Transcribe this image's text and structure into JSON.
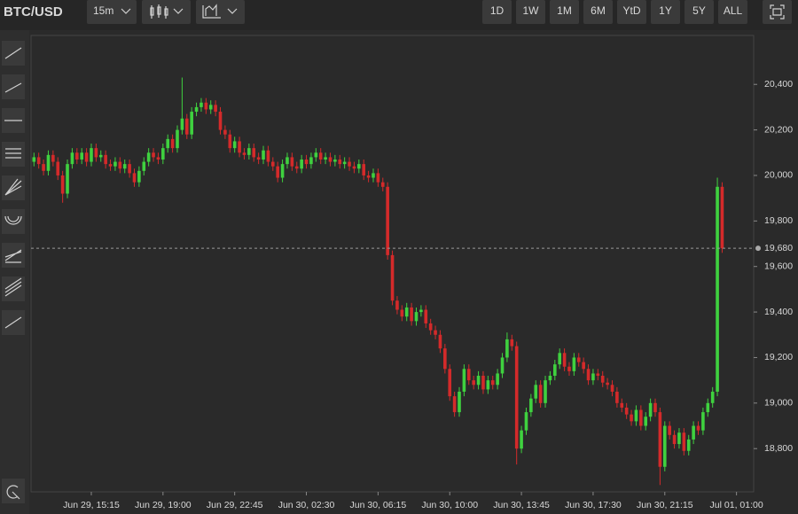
{
  "toolbar": {
    "symbol": "BTC/USD",
    "interval": "15m",
    "ranges": [
      "1D",
      "1W",
      "1M",
      "6M",
      "YtD",
      "1Y",
      "5Y",
      "ALL"
    ]
  },
  "chart_data": {
    "type": "candlestick",
    "categories": [
      null,
      null,
      null,
      null,
      null,
      null,
      null,
      null,
      null,
      null,
      null,
      null,
      "Jun 29, 15:15",
      null,
      null,
      null,
      null,
      null,
      null,
      null,
      null,
      null,
      null,
      null,
      null,
      null,
      null,
      "Jun 29, 19:00",
      null,
      null,
      null,
      null,
      null,
      null,
      null,
      null,
      null,
      null,
      null,
      null,
      null,
      null,
      "Jun 29, 22:45",
      null,
      null,
      null,
      null,
      null,
      null,
      null,
      null,
      null,
      null,
      null,
      null,
      null,
      null,
      "Jun 30, 02:30",
      null,
      null,
      null,
      null,
      null,
      null,
      null,
      null,
      null,
      null,
      null,
      null,
      null,
      null,
      "Jun 30, 06:15",
      null,
      null,
      null,
      null,
      null,
      null,
      null,
      null,
      null,
      null,
      null,
      null,
      null,
      null,
      "Jun 30, 10:00",
      null,
      null,
      null,
      null,
      null,
      null,
      null,
      null,
      null,
      null,
      null,
      null,
      null,
      null,
      "Jun 30, 13:45",
      null,
      null,
      null,
      null,
      null,
      null,
      null,
      null,
      null,
      null,
      null,
      null,
      null,
      null,
      "Jun 30, 17:30",
      null,
      null,
      null,
      null,
      null,
      null,
      null,
      null,
      null,
      null,
      null,
      null,
      null,
      null,
      "Jun 30, 21:15",
      null,
      null,
      null,
      null,
      null,
      null,
      null,
      null,
      null,
      null,
      null,
      null,
      null,
      null,
      "Jul 01, 01:00"
    ],
    "open": [
      20060,
      20080,
      20050,
      20020,
      20090,
      20060,
      20000,
      19920,
      20050,
      20100,
      20070,
      20100,
      20060,
      20120,
      20080,
      20090,
      20050,
      20040,
      20060,
      20030,
      20050,
      20010,
      19970,
      20020,
      20060,
      20100,
      20080,
      20070,
      20120,
      20160,
      20120,
      20200,
      20250,
      20180,
      20280,
      20300,
      20320,
      20290,
      20310,
      20280,
      20200,
      20180,
      20120,
      20150,
      20100,
      20090,
      20120,
      20080,
      20070,
      20110,
      20060,
      20040,
      19990,
      20050,
      20080,
      20040,
      20030,
      20070,
      20050,
      20080,
      20100,
      20070,
      20080,
      20060,
      20070,
      20050,
      20060,
      20040,
      20030,
      20050,
      20000,
      19990,
      20010,
      19970,
      19950,
      19650,
      19450,
      19410,
      19380,
      19420,
      19360,
      19400,
      19410,
      19350,
      19320,
      19300,
      19240,
      19150,
      19030,
      18960,
      19050,
      19150,
      19100,
      19080,
      19120,
      19060,
      19100,
      19080,
      19130,
      19200,
      19280,
      19250,
      18800,
      18880,
      18960,
      19020,
      19080,
      19000,
      19100,
      19120,
      19170,
      19220,
      19160,
      19140,
      19200,
      19180,
      19150,
      19100,
      19130,
      19120,
      19090,
      19080,
      19050,
      19000,
      18980,
      18950,
      18920,
      18970,
      18900,
      18940,
      19000,
      18960,
      18720,
      18900,
      18860,
      18820,
      18870,
      18790,
      18840,
      18900,
      18880,
      18960,
      19000,
      19050,
      19950,
      null,
      null,
      null
    ],
    "high": [
      20100,
      20100,
      20070,
      20110,
      20110,
      20080,
      20020,
      20070,
      20120,
      20120,
      20120,
      20120,
      20140,
      20140,
      20110,
      20110,
      20070,
      20080,
      20080,
      20070,
      20070,
      20030,
      20040,
      20080,
      20120,
      20120,
      20100,
      20140,
      20180,
      20180,
      20220,
      20430,
      20270,
      20300,
      20320,
      20340,
      20340,
      20330,
      20330,
      20300,
      20220,
      20200,
      20170,
      20170,
      20120,
      20140,
      20140,
      20100,
      20130,
      20130,
      20080,
      20060,
      20070,
      20100,
      20100,
      20060,
      20090,
      20090,
      20100,
      20120,
      20120,
      20100,
      20100,
      20090,
      20090,
      20080,
      20080,
      20060,
      20070,
      20070,
      20020,
      20030,
      20030,
      19990,
      19970,
      19670,
      19470,
      19430,
      19440,
      19440,
      19420,
      19430,
      19430,
      19370,
      19340,
      19320,
      19260,
      19170,
      19050,
      19070,
      19170,
      19170,
      19120,
      19140,
      19140,
      19120,
      19120,
      19150,
      19220,
      19310,
      19300,
      19270,
      18900,
      18980,
      19040,
      19100,
      19100,
      19120,
      19140,
      19190,
      19240,
      19240,
      19180,
      19220,
      19220,
      19200,
      19170,
      19150,
      19150,
      19140,
      19110,
      19100,
      19070,
      19020,
      19000,
      18970,
      18990,
      18990,
      18960,
      19020,
      19020,
      18980,
      18920,
      18920,
      18880,
      18890,
      18890,
      18860,
      18920,
      18920,
      18980,
      19020,
      19070,
      19990,
      19970,
      null,
      null,
      null
    ],
    "low": [
      20040,
      20030,
      20000,
      20000,
      20040,
      19980,
      19880,
      19900,
      20030,
      20050,
      20050,
      20040,
      20040,
      20060,
      20060,
      20030,
      20020,
      20020,
      20010,
      20010,
      19990,
      19950,
      19950,
      20000,
      20040,
      20060,
      20050,
      20050,
      20100,
      20100,
      20100,
      20180,
      20160,
      20160,
      20260,
      20280,
      20270,
      20270,
      20260,
      20180,
      20160,
      20100,
      20100,
      20080,
      20070,
      20070,
      20060,
      20050,
      20050,
      20040,
      20020,
      19970,
      19970,
      20030,
      20020,
      20010,
      20010,
      20030,
      20030,
      20060,
      20050,
      20050,
      20040,
      20040,
      20030,
      20030,
      20020,
      20010,
      20010,
      19980,
      19970,
      19970,
      19950,
      19930,
      19630,
      19430,
      19390,
      19360,
      19360,
      19340,
      19340,
      19380,
      19330,
      19300,
      19280,
      19220,
      19130,
      19010,
      18940,
      18940,
      19030,
      19080,
      19060,
      19060,
      19040,
      19040,
      19060,
      19060,
      19110,
      19180,
      19230,
      18730,
      18780,
      18860,
      18940,
      19000,
      18980,
      18980,
      19080,
      19100,
      19150,
      19140,
      19120,
      19120,
      19160,
      19130,
      19080,
      19080,
      19100,
      19070,
      19060,
      19030,
      18980,
      18960,
      18930,
      18900,
      18900,
      18880,
      18880,
      18920,
      18940,
      18640,
      18700,
      18840,
      18800,
      18800,
      18770,
      18770,
      18820,
      18860,
      18860,
      18940,
      18980,
      19030,
      19660,
      null,
      null,
      null
    ],
    "close": [
      20080,
      20050,
      20020,
      20090,
      20060,
      20000,
      19920,
      20050,
      20100,
      20070,
      20100,
      20060,
      20120,
      20080,
      20090,
      20050,
      20040,
      20060,
      20030,
      20050,
      20010,
      19970,
      20020,
      20060,
      20100,
      20080,
      20070,
      20120,
      20160,
      20120,
      20200,
      20250,
      20180,
      20280,
      20300,
      20320,
      20290,
      20310,
      20280,
      20200,
      20180,
      20120,
      20150,
      20100,
      20090,
      20120,
      20080,
      20070,
      20110,
      20060,
      20040,
      19990,
      20050,
      20080,
      20040,
      20030,
      20070,
      20050,
      20080,
      20100,
      20070,
      20080,
      20060,
      20070,
      20050,
      20060,
      20040,
      20030,
      20050,
      20000,
      19990,
      20010,
      19970,
      19950,
      19650,
      19450,
      19410,
      19380,
      19420,
      19360,
      19400,
      19410,
      19350,
      19320,
      19300,
      19240,
      19150,
      19030,
      18960,
      19050,
      19150,
      19100,
      19080,
      19120,
      19060,
      19100,
      19080,
      19130,
      19200,
      19280,
      19250,
      18800,
      18880,
      18960,
      19020,
      19080,
      19000,
      19100,
      19120,
      19170,
      19220,
      19160,
      19140,
      19200,
      19180,
      19150,
      19100,
      19130,
      19120,
      19090,
      19080,
      19050,
      19000,
      18980,
      18950,
      18920,
      18970,
      18900,
      18940,
      19000,
      18960,
      18720,
      18900,
      18860,
      18820,
      18870,
      18790,
      18840,
      18900,
      18880,
      18960,
      19000,
      19050,
      19950,
      19680,
      null,
      null,
      null
    ],
    "up_color": "#3fd13f",
    "down_color": "#d42a2a",
    "ylim": [
      18610,
      20615
    ],
    "yticks": [
      {
        "value": 18800,
        "label": "18,800"
      },
      {
        "value": 19000,
        "label": "19,000"
      },
      {
        "value": 19200,
        "label": "19,200"
      },
      {
        "value": 19400,
        "label": "19,400"
      },
      {
        "value": 19600,
        "label": "19,600"
      },
      {
        "value": 19800,
        "label": "19,800"
      },
      {
        "value": 20000,
        "label": "20,000"
      },
      {
        "value": 20200,
        "label": "20,200"
      },
      {
        "value": 20400,
        "label": "20,400"
      }
    ],
    "last_price": {
      "value": 19680,
      "label": "19,680"
    }
  }
}
